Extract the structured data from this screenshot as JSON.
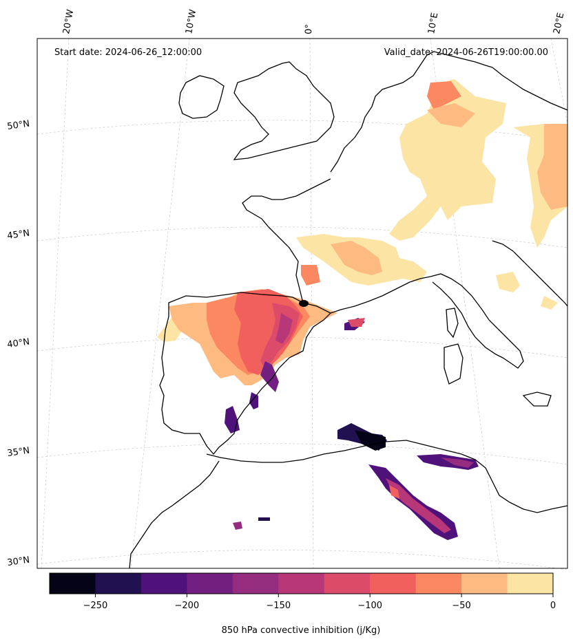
{
  "header": {
    "start_date": "Start date: 2024-06-26_12:00:00",
    "valid_date": "Valid_date: 2024-06-26T19:00:00.00"
  },
  "grid_labels": {
    "lon": [
      "20°W",
      "10°W",
      "0°",
      "10°E",
      "20°E"
    ],
    "lat": [
      "50°N",
      "45°N",
      "40°N",
      "35°N",
      "30°N"
    ]
  },
  "colorbar": {
    "label": "850 hPa convective inhibition (j/Kg)",
    "ticks": [
      "−250",
      "−200",
      "−150",
      "−100",
      "−50",
      "0"
    ],
    "levels": [
      -275,
      -250,
      -225,
      -200,
      -175,
      -150,
      -125,
      -100,
      -75,
      -50,
      -25,
      0
    ],
    "colors": [
      "#050416",
      "#221150",
      "#4f127b",
      "#721f81",
      "#952c80",
      "#b73779",
      "#dc4b6a",
      "#f1605d",
      "#fb8861",
      "#febb81",
      "#fce4a5"
    ]
  }
}
